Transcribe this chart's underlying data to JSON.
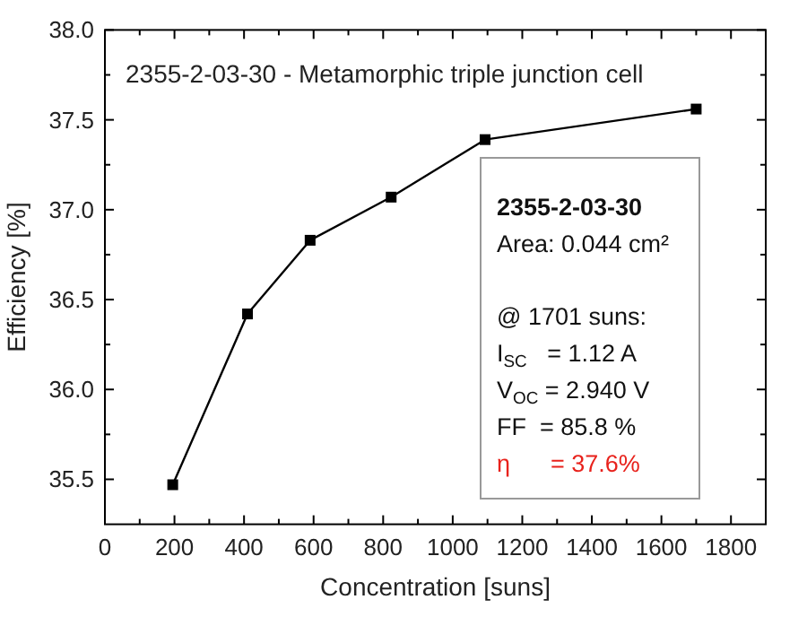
{
  "chart_data": {
    "type": "line",
    "title": "2355-2-03-30 - Metamorphic triple junction cell",
    "xlabel": "Concentration [suns]",
    "ylabel": "Efficiency [%]",
    "x": [
      195,
      410,
      590,
      823,
      1093,
      1700
    ],
    "series": [
      {
        "color": "#000000",
        "values": [
          35.47,
          36.42,
          36.83,
          37.07,
          37.39,
          37.56
        ]
      }
    ],
    "xlim": [
      0,
      1900
    ],
    "xticks": [
      0,
      200,
      400,
      600,
      800,
      1000,
      1200,
      1400,
      1600,
      1800
    ],
    "ylim": [
      35.25,
      38.0
    ],
    "yticks": [
      {
        "value": 35.5,
        "label": "35.5"
      },
      {
        "value": 36,
        "label": "36.0"
      },
      {
        "value": 36.5,
        "label": "36.5"
      },
      {
        "value": 37,
        "label": "37.0"
      },
      {
        "value": 37.5,
        "label": "37.5"
      },
      {
        "value": 38,
        "label": "38.0"
      }
    ],
    "marker": "square",
    "line_style": "solid",
    "grid": false,
    "annotations": [
      "2355-2-03-30",
      "Area: 0.044 cm²",
      "@ 1701 suns:",
      "I$_{SC}$   = 1.12 A",
      "V$_{OC}$ = 2.940 V",
      "FF  = 85.8 %",
      "η      = 37.6%"
    ]
  }
}
